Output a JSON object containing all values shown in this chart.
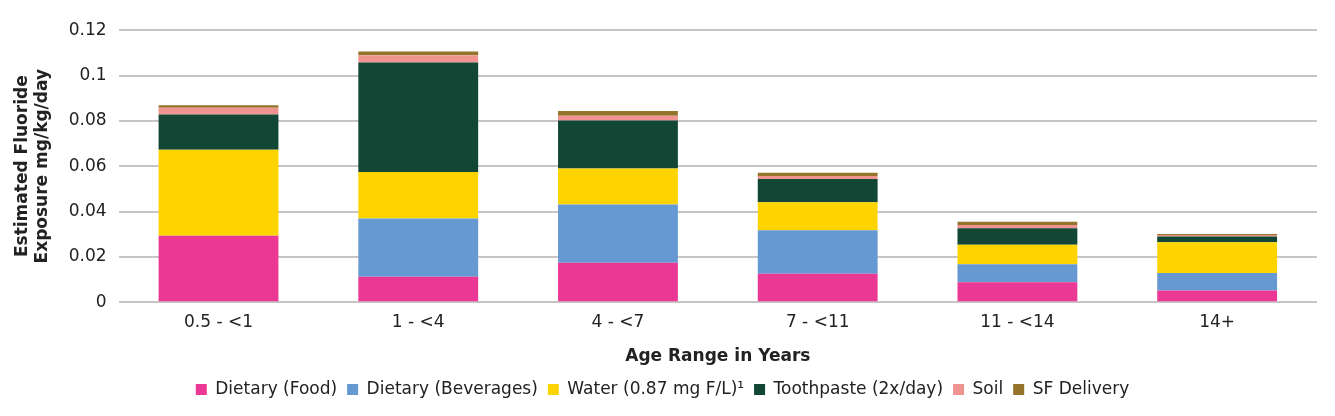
{
  "chart_data": {
    "type": "bar",
    "stacked": true,
    "xlabel": "Age Range in Years",
    "ylabel": "Estimated Fluoride\nExposure mg/kg/day",
    "categories": [
      "0.5 - <1",
      "1 - <4",
      "4 - <7",
      "7 - <11",
      "11 - <14",
      "14+"
    ],
    "series": [
      {
        "name": "Dietary (Food)",
        "color": "#ec3895",
        "values": [
          0.0293,
          0.0112,
          0.0174,
          0.0125,
          0.0088,
          0.0052
        ]
      },
      {
        "name": "Dietary (Beverages)",
        "color": "#6699d2",
        "values": [
          0,
          0.0257,
          0.0257,
          0.0192,
          0.0079,
          0.0077
        ]
      },
      {
        "name": "Water (0.87 mg F/L)¹",
        "color": "#fdd400",
        "values": [
          0.038,
          0.0205,
          0.0159,
          0.0124,
          0.0086,
          0.0136
        ]
      },
      {
        "name": "Toothpaste (2x/day)",
        "color": "#114734",
        "values": [
          0.0155,
          0.0483,
          0.0212,
          0.0102,
          0.0073,
          0.0025
        ]
      },
      {
        "name": "Soil",
        "color": "#f09492",
        "values": [
          0.003,
          0.0033,
          0.0021,
          0.0014,
          0.0015,
          0.0006
        ]
      },
      {
        "name": "SF Delivery",
        "color": "#94742a",
        "values": [
          0.0011,
          0.0016,
          0.0021,
          0.0014,
          0.0014,
          0.0005
        ]
      }
    ],
    "ylim": [
      0,
      0.12
    ],
    "yticks": [
      0,
      0.02,
      0.04,
      0.06,
      0.08,
      0.1,
      0.12
    ],
    "grid": "y",
    "legend": "bottom"
  }
}
